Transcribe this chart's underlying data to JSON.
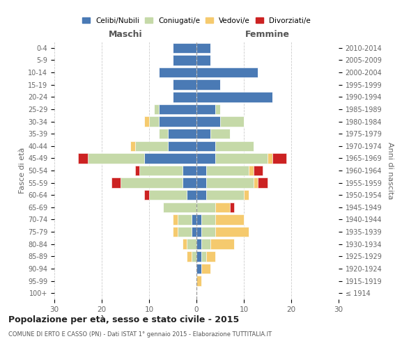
{
  "age_groups": [
    "100+",
    "95-99",
    "90-94",
    "85-89",
    "80-84",
    "75-79",
    "70-74",
    "65-69",
    "60-64",
    "55-59",
    "50-54",
    "45-49",
    "40-44",
    "35-39",
    "30-34",
    "25-29",
    "20-24",
    "15-19",
    "10-14",
    "5-9",
    "0-4"
  ],
  "birth_years": [
    "≤ 1914",
    "1915-1919",
    "1920-1924",
    "1925-1929",
    "1930-1934",
    "1935-1939",
    "1940-1944",
    "1945-1949",
    "1950-1954",
    "1955-1959",
    "1960-1964",
    "1965-1969",
    "1970-1974",
    "1975-1979",
    "1980-1984",
    "1985-1989",
    "1990-1994",
    "1995-1999",
    "2000-2004",
    "2005-2009",
    "2010-2014"
  ],
  "maschi": {
    "celibi": [
      0,
      0,
      0,
      0,
      0,
      1,
      1,
      0,
      2,
      3,
      3,
      11,
      6,
      6,
      8,
      8,
      5,
      5,
      8,
      5,
      5
    ],
    "coniugati": [
      0,
      0,
      0,
      1,
      2,
      3,
      3,
      7,
      8,
      13,
      9,
      12,
      7,
      2,
      2,
      1,
      0,
      0,
      0,
      0,
      0
    ],
    "vedovi": [
      0,
      0,
      0,
      1,
      1,
      1,
      1,
      0,
      0,
      0,
      0,
      0,
      1,
      0,
      1,
      0,
      0,
      0,
      0,
      0,
      0
    ],
    "divorziati": [
      0,
      0,
      0,
      0,
      0,
      0,
      0,
      0,
      1,
      2,
      1,
      2,
      0,
      0,
      0,
      0,
      0,
      0,
      0,
      0,
      0
    ]
  },
  "femmine": {
    "nubili": [
      0,
      0,
      1,
      1,
      1,
      1,
      1,
      0,
      2,
      2,
      2,
      4,
      4,
      3,
      5,
      4,
      16,
      5,
      13,
      3,
      3
    ],
    "coniugate": [
      0,
      0,
      0,
      1,
      2,
      3,
      3,
      4,
      8,
      10,
      9,
      11,
      8,
      4,
      5,
      1,
      0,
      0,
      0,
      0,
      0
    ],
    "vedove": [
      0,
      1,
      2,
      2,
      5,
      7,
      6,
      3,
      1,
      1,
      1,
      1,
      0,
      0,
      0,
      0,
      0,
      0,
      0,
      0,
      0
    ],
    "divorziate": [
      0,
      0,
      0,
      0,
      0,
      0,
      0,
      1,
      0,
      2,
      2,
      3,
      0,
      0,
      0,
      0,
      0,
      0,
      0,
      0,
      0
    ]
  },
  "color_celibi": "#4a7ab5",
  "color_coniugati": "#c5d9a8",
  "color_vedovi": "#f5ca6e",
  "color_divorziati": "#cc2222",
  "xlim": 30,
  "title": "Popolazione per età, sesso e stato civile - 2015",
  "subtitle": "COMUNE DI ERTO E CASSO (PN) - Dati ISTAT 1° gennaio 2015 - Elaborazione TUTTITALIA.IT",
  "ylabel_left": "Fasce di età",
  "ylabel_right": "Anni di nascita",
  "label_maschi": "Maschi",
  "label_femmine": "Femmine",
  "legend_labels": [
    "Celibi/Nubili",
    "Coniugati/e",
    "Vedovi/e",
    "Divorziati/e"
  ],
  "background_color": "#ffffff",
  "grid_color": "#cccccc"
}
